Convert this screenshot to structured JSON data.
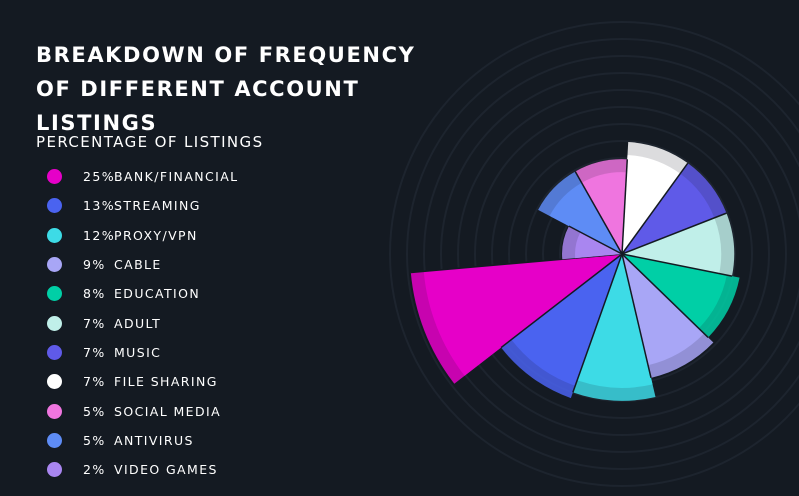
{
  "chart_data": {
    "type": "pie",
    "title": "BREAKDOWN OF FREQUENCY OF DIFFERENT ACCOUNT LISTINGS",
    "legend_title": "PERCENTAGE OF LISTINGS",
    "legend_position": "left",
    "categories": [
      "BANK/FINANCIAL",
      "STREAMING",
      "PROXY/VPN",
      "CABLE",
      "EDUCATION",
      "ADULT",
      "MUSIC",
      "FILE SHARING",
      "SOCIAL MEDIA",
      "ANTIVIRUS",
      "VIDEO GAMES"
    ],
    "values": [
      25,
      13,
      12,
      9,
      8,
      7,
      7,
      7,
      5,
      5,
      2
    ],
    "labels": [
      "25%",
      "13%",
      "12%",
      "9%",
      "8%",
      "7%",
      "7%",
      "7%",
      "5%",
      "5%",
      "2%"
    ],
    "colors": [
      "#e600c8",
      "#4a63f0",
      "#3ddbe6",
      "#a8a6f6",
      "#00cfa6",
      "#c0efe9",
      "#5f5ae8",
      "#ffffff",
      "#ef75df",
      "#5e8cf5",
      "#a986f0"
    ],
    "background": "#141a22"
  }
}
